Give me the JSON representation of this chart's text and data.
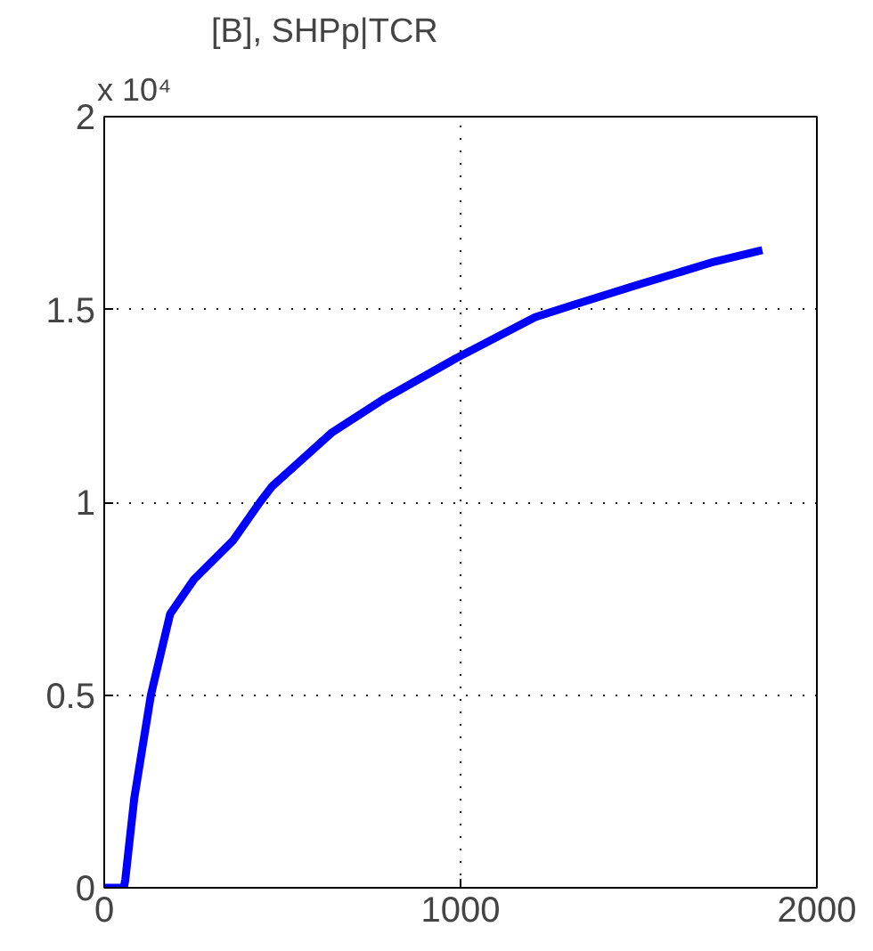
{
  "chart_data": {
    "type": "line",
    "title": "[B],  SHPp|TCR",
    "annotations": [
      "x 10⁴"
    ],
    "series": [
      {
        "color": "#0000ff",
        "x": [
          0,
          55,
          59,
          84,
          131,
          185,
          252,
          361,
          437,
          470,
          638,
          789,
          991,
          1209,
          1310,
          1494,
          1713,
          1847
        ],
        "values": [
          0,
          0,
          0.02,
          0.23,
          0.5,
          0.71,
          0.8,
          0.9,
          1.0,
          1.04,
          1.18,
          1.27,
          1.375,
          1.48,
          1.51,
          1.563,
          1.624,
          1.654
        ]
      }
    ],
    "xlim": [
      0,
      2000
    ],
    "xticks": [
      0,
      1000,
      2000
    ],
    "ylim": [
      0,
      2
    ],
    "yticks": [
      0,
      0.5,
      1,
      1.5,
      2
    ],
    "grid": true,
    "line_style": "solid"
  }
}
